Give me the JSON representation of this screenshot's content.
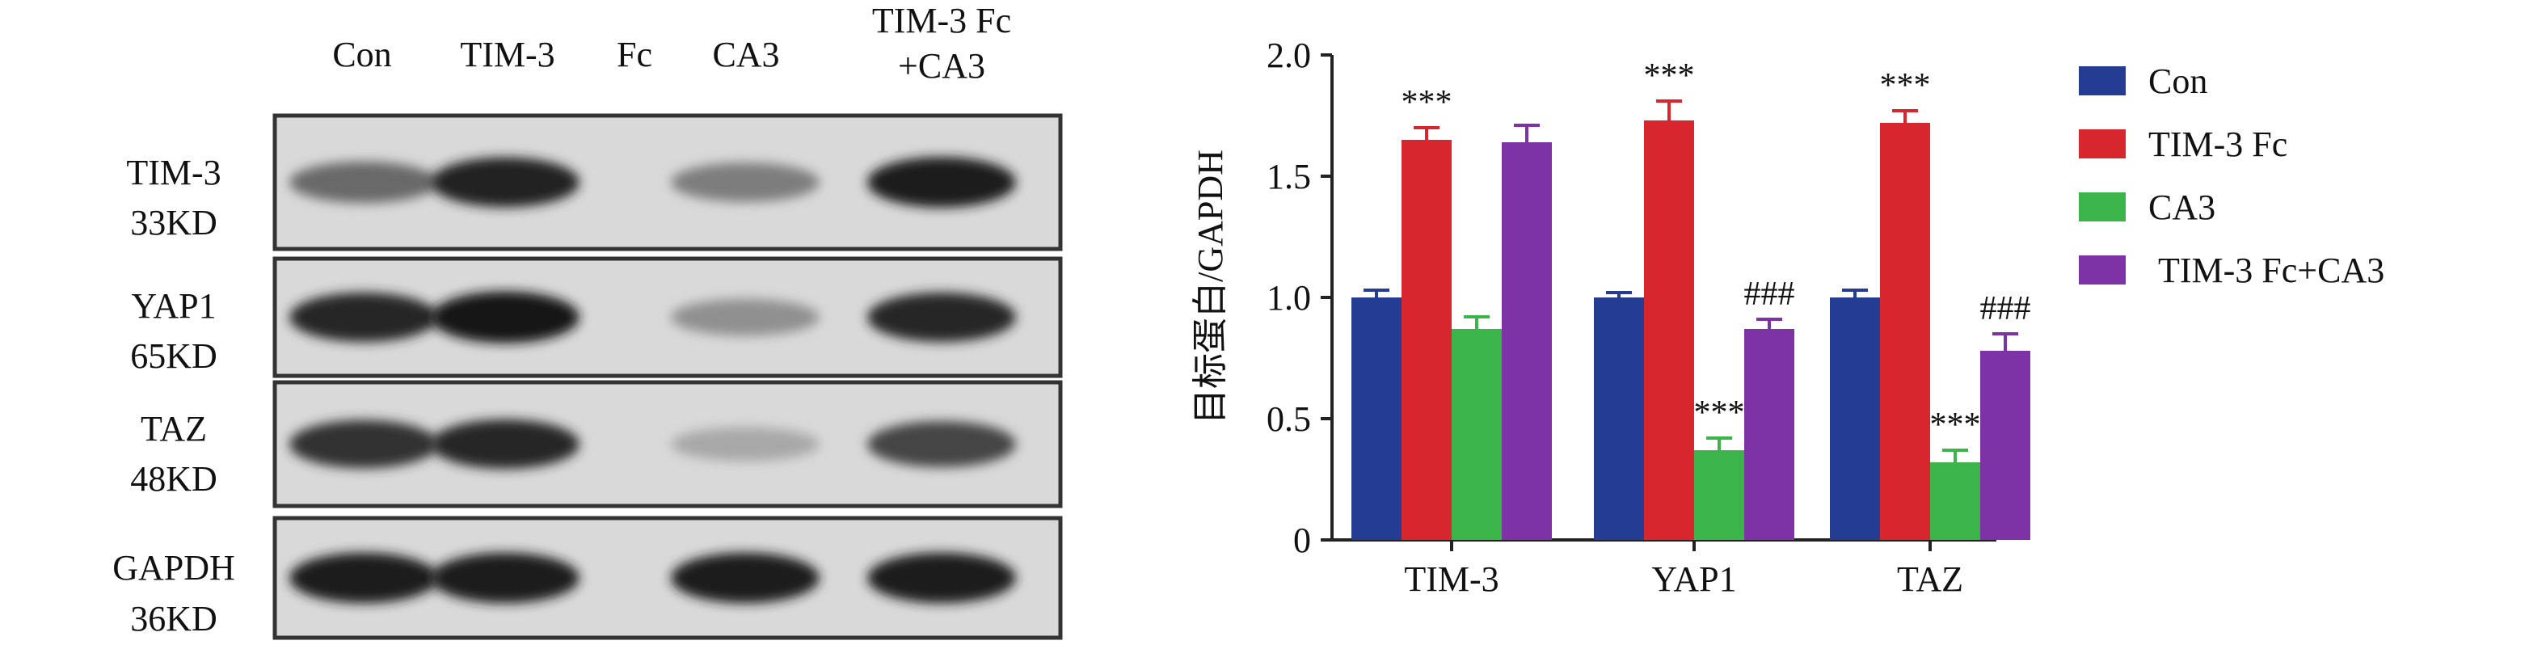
{
  "western_blot": {
    "lane_labels": [
      "Con",
      "TIM-3",
      "Fc",
      "CA3",
      "TIM-3 Fc",
      "+CA3"
    ],
    "rows": [
      {
        "protein": "TIM-3",
        "size": "33KD"
      },
      {
        "protein": "YAP1",
        "size": "65KD"
      },
      {
        "protein": "TAZ",
        "size": "48KD"
      },
      {
        "protein": "GAPDH",
        "size": "36KD"
      }
    ],
    "band_intensity": [
      [
        0.55,
        0.92,
        0.45,
        0.95
      ],
      [
        0.9,
        1.0,
        0.35,
        0.9
      ],
      [
        0.85,
        0.9,
        0.22,
        0.75
      ],
      [
        0.95,
        0.95,
        0.95,
        0.95
      ]
    ]
  },
  "chart_data": {
    "type": "bar",
    "ylabel": "目标蛋白/GAPDH",
    "xlabel": "",
    "categories": [
      "TIM-3",
      "YAP1",
      "TAZ"
    ],
    "ylim": [
      0,
      2.0
    ],
    "yticks": [
      "0",
      "0.5",
      "1.0",
      "1.5",
      "2.0"
    ],
    "legend_position": "right",
    "series": [
      {
        "name": "Con",
        "color": "#243d93",
        "values": [
          1.0,
          1.0,
          1.0
        ],
        "errors": [
          0.03,
          0.02,
          0.03
        ]
      },
      {
        "name": "TIM-3 Fc",
        "color": "#d8262e",
        "values": [
          1.65,
          1.73,
          1.72
        ],
        "errors": [
          0.05,
          0.08,
          0.05
        ]
      },
      {
        "name": "CA3",
        "color": "#3bb549",
        "values": [
          0.87,
          0.37,
          0.32
        ],
        "errors": [
          0.05,
          0.05,
          0.05
        ]
      },
      {
        "name": "TIM-3 Fc+CA3",
        "color": "#7d33a6",
        "values": [
          1.64,
          0.87,
          0.78
        ],
        "errors": [
          0.07,
          0.04,
          0.07
        ]
      }
    ],
    "annotations": [
      {
        "category": 0,
        "series": 1,
        "text": "***"
      },
      {
        "category": 1,
        "series": 1,
        "text": "***"
      },
      {
        "category": 1,
        "series": 2,
        "text": "***"
      },
      {
        "category": 1,
        "series": 3,
        "text": "###"
      },
      {
        "category": 2,
        "series": 1,
        "text": "***"
      },
      {
        "category": 2,
        "series": 2,
        "text": "***"
      },
      {
        "category": 2,
        "series": 3,
        "text": "###"
      }
    ]
  }
}
